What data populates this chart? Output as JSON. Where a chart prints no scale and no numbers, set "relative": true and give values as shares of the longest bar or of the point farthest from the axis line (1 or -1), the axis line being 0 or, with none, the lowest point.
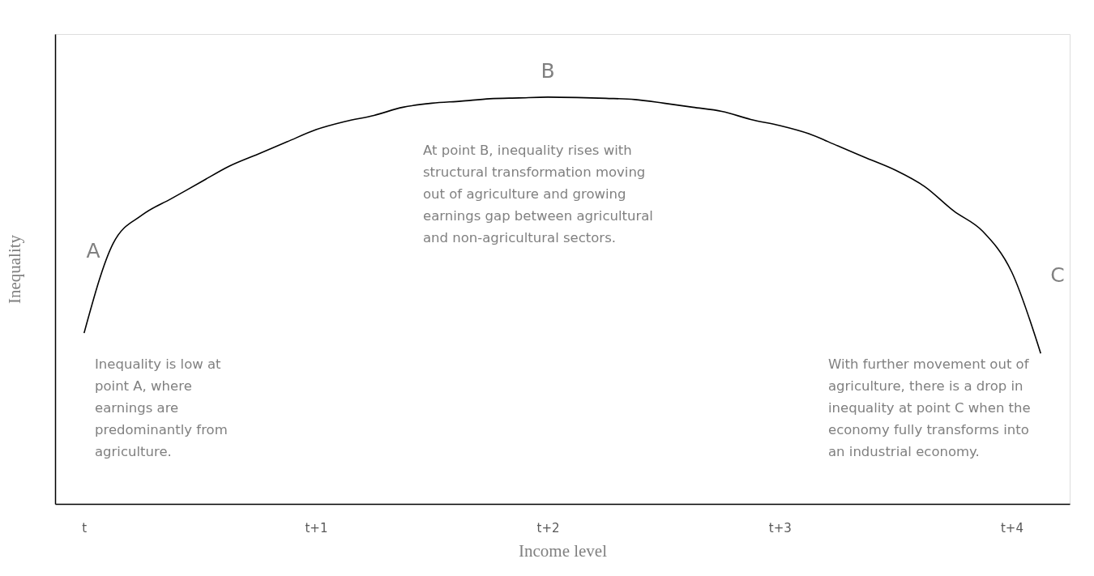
{
  "chart_data": {
    "type": "line",
    "xlabel": "Income level",
    "ylabel": "Inequality",
    "relative": true,
    "grid": false,
    "tick_labels": "x",
    "marker": "none",
    "line_style": "solid",
    "categories": [
      "t",
      null,
      null,
      null,
      null,
      null,
      null,
      null,
      "t+1",
      null,
      null,
      null,
      null,
      null,
      null,
      null,
      "t+2",
      null,
      null,
      null,
      null,
      null,
      null,
      null,
      "t+3",
      null,
      null,
      null,
      null,
      null,
      null,
      null,
      "t+4",
      null
    ],
    "series": [
      {
        "color": "#000000",
        "values": [
          0.42,
          0.64,
          0.71,
          0.75,
          0.79,
          0.83,
          0.86,
          0.89,
          0.92,
          0.94,
          0.955,
          0.975,
          0.985,
          0.99,
          0.996,
          0.998,
          1,
          0.999,
          0.997,
          0.994,
          0.985,
          0.975,
          0.965,
          0.945,
          0.93,
          0.91,
          0.88,
          0.85,
          0.82,
          0.78,
          0.72,
          0.67,
          0.57,
          0.37
        ]
      }
    ],
    "annotations": [
      {
        "text": "B",
        "x": "t+2",
        "y": 1
      },
      "A",
      "C",
      "Inequality is low at point A, where earnings are predominantly from agriculture.",
      "At point B, inequality rises with structural transformation moving out of agriculture and growing earnings gap between agricultural and non-agricultural sectors.",
      "With further movement out of agriculture, there is a drop in inequality at point C when the economy fully transforms into an industrial economy."
    ]
  }
}
